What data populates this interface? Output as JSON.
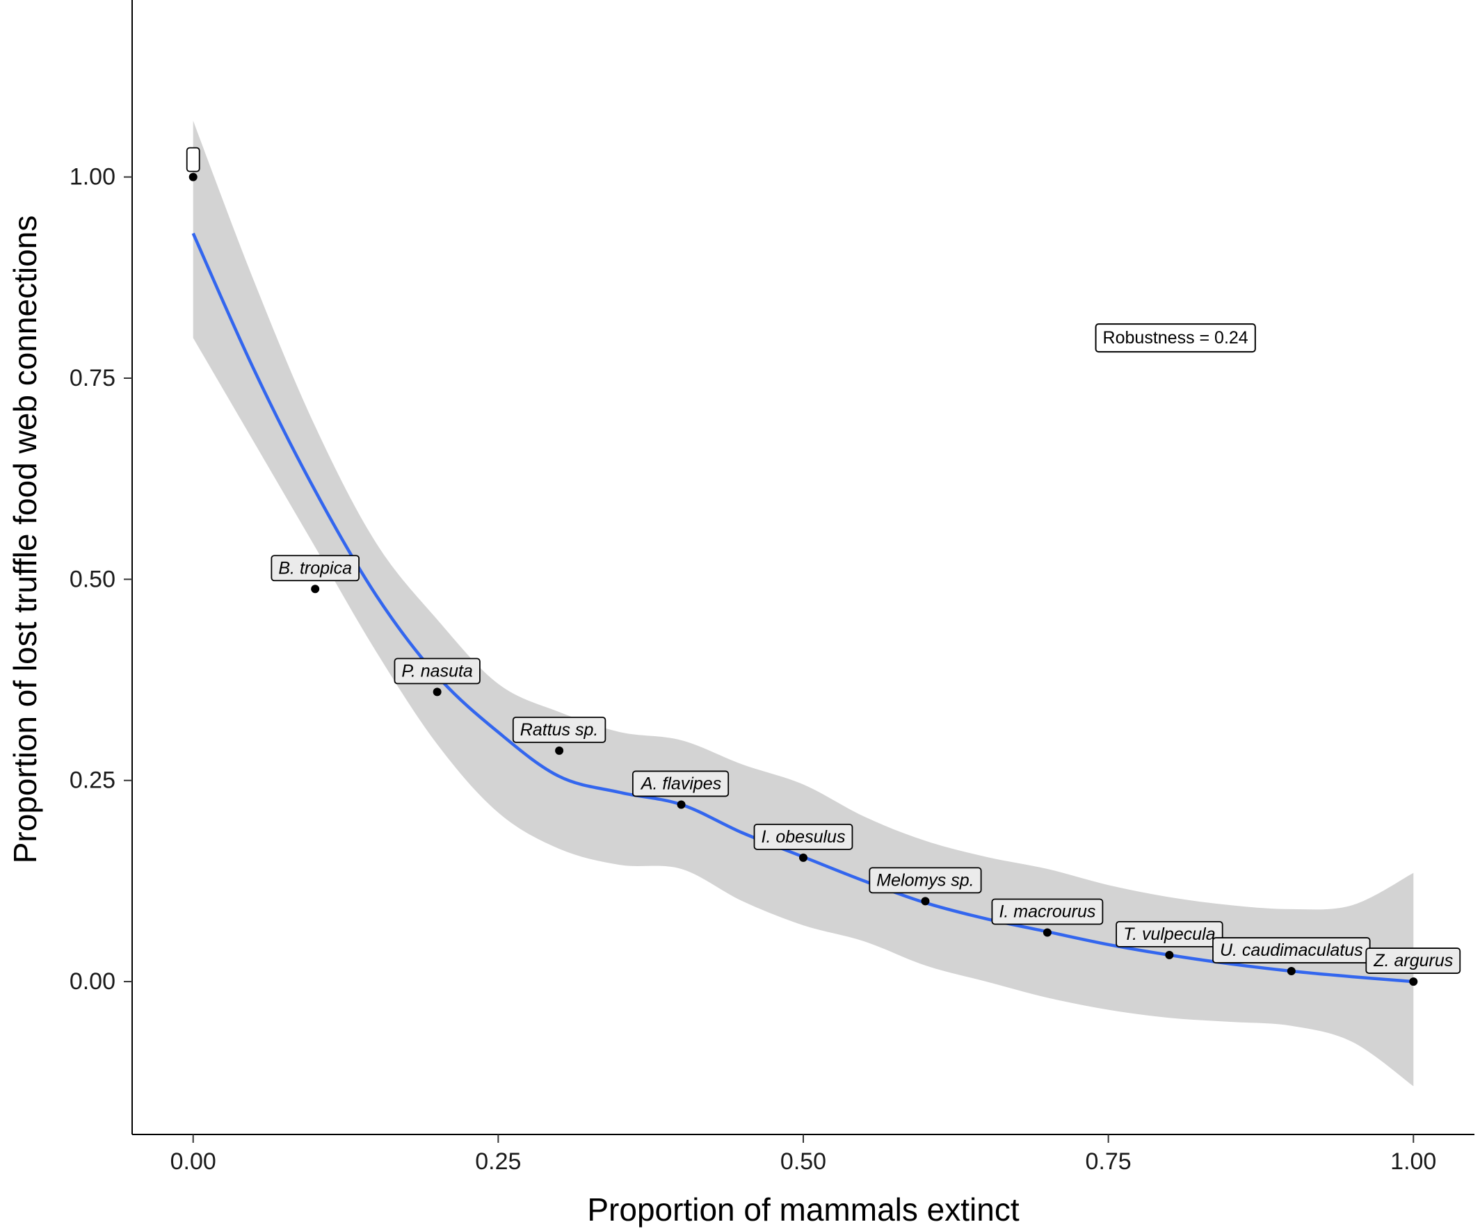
{
  "chart_data": {
    "type": "scatter",
    "xlabel": "Proportion of mammals extinct",
    "ylabel": "Proportion of lost truffle food web connections",
    "xlim": [
      -0.05,
      1.05
    ],
    "ylim": [
      -0.19,
      1.22
    ],
    "x_ticks": [
      "0.00",
      "0.25",
      "0.50",
      "0.75",
      "1.00"
    ],
    "y_ticks": [
      "0.00",
      "0.25",
      "0.50",
      "0.75",
      "1.00"
    ],
    "grid": false,
    "points": [
      {
        "x": 0.0,
        "y": 1.0,
        "label": ""
      },
      {
        "x": 0.1,
        "y": 0.488,
        "label": "B. tropica"
      },
      {
        "x": 0.2,
        "y": 0.36,
        "label": "P. nasuta"
      },
      {
        "x": 0.3,
        "y": 0.287,
        "label": "Rattus sp."
      },
      {
        "x": 0.4,
        "y": 0.22,
        "label": "A. flavipes"
      },
      {
        "x": 0.5,
        "y": 0.154,
        "label": "I. obesulus"
      },
      {
        "x": 0.6,
        "y": 0.1,
        "label": "Melomys sp."
      },
      {
        "x": 0.7,
        "y": 0.061,
        "label": "I. macrourus"
      },
      {
        "x": 0.8,
        "y": 0.033,
        "label": "T. vulpecula"
      },
      {
        "x": 0.9,
        "y": 0.013,
        "label": "U. caudimaculatus"
      },
      {
        "x": 1.0,
        "y": 0.0,
        "label": "Z. argurus"
      }
    ],
    "smooth": {
      "x": [
        0.0,
        0.05,
        0.1,
        0.15,
        0.2,
        0.25,
        0.3,
        0.35,
        0.4,
        0.45,
        0.5,
        0.55,
        0.6,
        0.65,
        0.7,
        0.75,
        0.8,
        0.85,
        0.9,
        0.95,
        1.0
      ],
      "y": [
        0.93,
        0.76,
        0.61,
        0.48,
        0.38,
        0.31,
        0.255,
        0.235,
        0.22,
        0.185,
        0.155,
        0.125,
        0.098,
        0.078,
        0.062,
        0.046,
        0.033,
        0.022,
        0.013,
        0.006,
        0.0
      ],
      "upper": [
        1.07,
        0.87,
        0.69,
        0.545,
        0.45,
        0.37,
        0.335,
        0.31,
        0.3,
        0.27,
        0.245,
        0.205,
        0.175,
        0.155,
        0.14,
        0.12,
        0.105,
        0.095,
        0.09,
        0.095,
        0.135
      ],
      "lower": [
        0.8,
        0.67,
        0.54,
        0.41,
        0.295,
        0.21,
        0.165,
        0.145,
        0.14,
        0.1,
        0.07,
        0.05,
        0.02,
        0.0,
        -0.02,
        -0.035,
        -0.045,
        -0.05,
        -0.055,
        -0.075,
        -0.13
      ]
    },
    "colors": {
      "line": "#3366ee",
      "band": "#d3d3d3",
      "point": "#000000"
    },
    "annotation": {
      "text": "Robustness = 0.24",
      "x": 0.805,
      "y": 0.8
    }
  }
}
